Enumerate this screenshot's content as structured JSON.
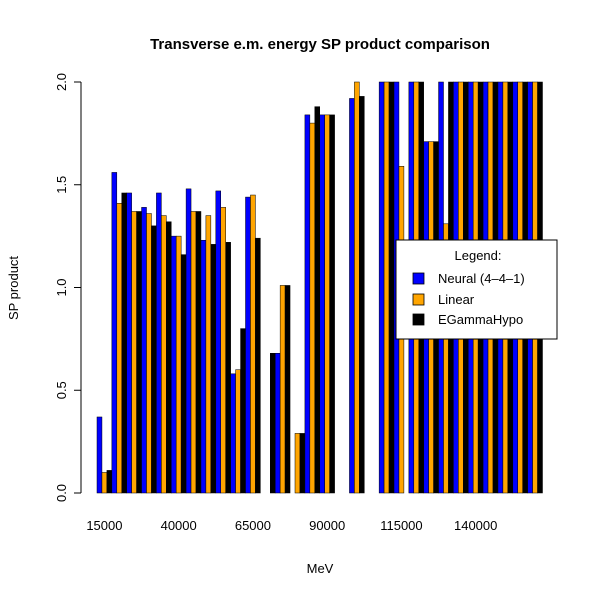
{
  "chart_data": {
    "type": "bar",
    "title": "Transverse e.m. energy SP product comparison",
    "xlabel": "MeV",
    "ylabel": "SP product",
    "ylim": [
      0,
      2.0
    ],
    "y_ticks": [
      "0.0",
      "0.5",
      "1.0",
      "1.5",
      "2.0"
    ],
    "x_tick_labels": [
      "15000",
      "40000",
      "65000",
      "90000",
      "115000",
      "140000"
    ],
    "categories": [
      "15000",
      "20000",
      "25000",
      "30000",
      "35000",
      "40000",
      "45000",
      "50000",
      "55000",
      "60000",
      "65000",
      "70000",
      "75000",
      "80000",
      "85000",
      "90000",
      "95000",
      "100000",
      "105000",
      "110000",
      "115000",
      "120000",
      "125000",
      "130000",
      "135000",
      "140000",
      "145000",
      "150000",
      "155000",
      "160000"
    ],
    "series": [
      {
        "name": "Neural (4-4-1)",
        "color": "#0000ff",
        "values": [
          0.37,
          1.56,
          1.46,
          1.39,
          1.46,
          1.25,
          1.48,
          1.23,
          1.47,
          0.58,
          1.44,
          0.0,
          0.68,
          0.0,
          1.84,
          1.84,
          0.0,
          1.92,
          0.0,
          2.0,
          2.0,
          2.0,
          1.71,
          2.0,
          2.0,
          2.0,
          2.0,
          2.0,
          2.0,
          2.0
        ]
      },
      {
        "name": "Linear",
        "color": "#ffa500",
        "values": [
          0.1,
          1.41,
          1.37,
          1.36,
          1.35,
          1.25,
          1.37,
          1.35,
          1.39,
          0.6,
          1.45,
          0.0,
          1.01,
          0.29,
          1.8,
          1.84,
          0.0,
          2.0,
          0.0,
          2.0,
          1.59,
          2.0,
          1.71,
          1.31,
          2.0,
          2.0,
          2.0,
          2.0,
          2.0,
          2.0
        ]
      },
      {
        "name": "EGammaHypo",
        "color": "#000000",
        "values": [
          0.11,
          1.46,
          1.37,
          1.3,
          1.32,
          1.16,
          1.37,
          1.21,
          1.22,
          0.8,
          1.24,
          0.68,
          1.01,
          0.29,
          1.88,
          1.84,
          0.0,
          1.93,
          0.0,
          2.0,
          0.0,
          2.0,
          1.71,
          2.0,
          2.0,
          2.0,
          2.0,
          2.0,
          2.0,
          2.0
        ]
      }
    ],
    "legend": {
      "title": "Legend:",
      "position": "right",
      "entries": [
        "Neural (4–4–1)",
        "Linear",
        "EGammaHypo"
      ]
    },
    "grid": false
  }
}
